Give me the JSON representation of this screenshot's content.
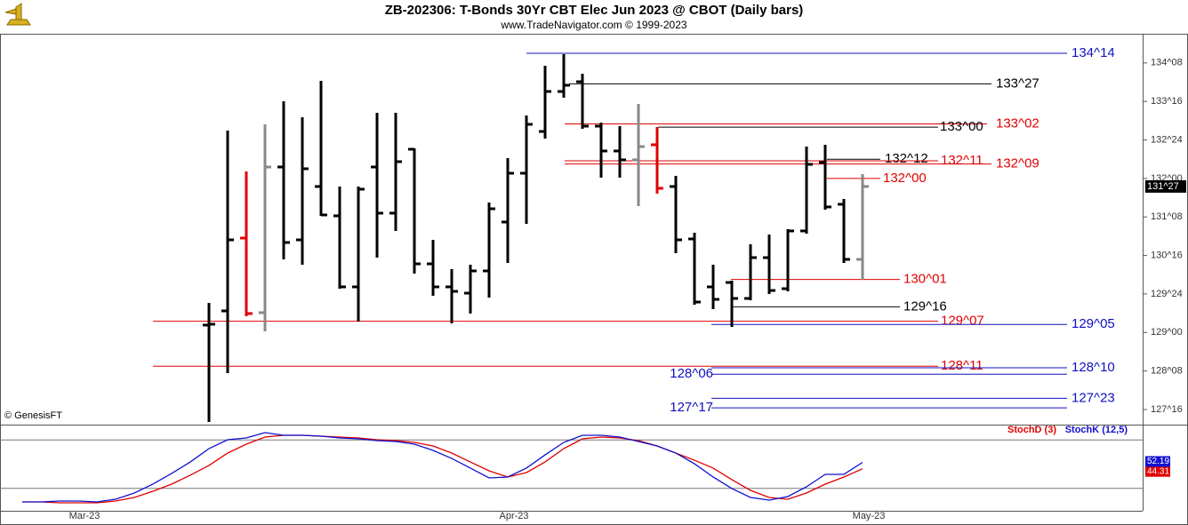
{
  "chart_data": [
    {
      "type": "ohlc",
      "title": "ZB-202306:  T-Bonds 30Yr CBT Elec Jun 2023 @ CBOT  (Daily bars)",
      "subtitle": "www.TradeNavigator.com © 1999-2023",
      "source_note": "© GenesisFT",
      "categories": [
        null,
        null,
        null,
        null,
        "Mar-23",
        null,
        null,
        null,
        null,
        null,
        null,
        null,
        null,
        null,
        null,
        null,
        null,
        null,
        null,
        null,
        null,
        null,
        null,
        null,
        null,
        null,
        null,
        "Apr-23",
        null,
        null,
        null,
        null,
        null,
        null,
        null,
        null,
        null,
        null,
        null,
        null,
        null,
        null,
        null,
        null,
        null,
        null,
        "May-23"
      ],
      "open": [
        null,
        null,
        null,
        null,
        null,
        null,
        null,
        null,
        null,
        null,
        129.144,
        129.42,
        130.839,
        129.386,
        132.223,
        130.804,
        131.843,
        131.272,
        129.888,
        132.223,
        131.324,
        132.569,
        130.337,
        129.888,
        129.766,
        130.199,
        131.151,
        132.102,
        132.915,
        133.694,
        133.884,
        133.019,
        132.535,
        132.362,
        132.656,
        131.843,
        130.822,
        129.888,
        129.974,
        129.663,
        130.458,
        129.853,
        130.978,
        132.31,
        131.497,
        130.424,
        null
      ],
      "high": [
        null,
        null,
        null,
        null,
        null,
        null,
        null,
        null,
        null,
        null,
        129.576,
        132.933,
        132.137,
        133.054,
        133.503,
        133.192,
        133.9,
        131.843,
        131.843,
        133.279,
        133.279,
        132.587,
        130.804,
        130.234,
        130.32,
        131.531,
        132.396,
        133.227,
        134.196,
        134.42,
        134.04,
        133.088,
        133.019,
        133.452,
        133.002,
        132.05,
        130.943,
        130.32,
        130.009,
        130.718,
        130.908,
        131.012,
        132.621,
        132.656,
        131.6,
        132.085,
        null
      ],
      "low": [
        null,
        null,
        null,
        null,
        null,
        null,
        null,
        null,
        null,
        null,
        127.258,
        128.209,
        129.317,
        129.022,
        130.424,
        130.32,
        131.272,
        129.853,
        129.213,
        130.458,
        130.978,
        130.147,
        129.715,
        129.178,
        129.369,
        129.68,
        130.355,
        131.116,
        132.777,
        133.573,
        132.967,
        132.016,
        132.016,
        131.462,
        131.704,
        130.545,
        129.542,
        129.455,
        129.109,
        129.628,
        129.749,
        129.801,
        130.926,
        131.393,
        130.355,
        130.026,
        null
      ],
      "close": [
        null,
        null,
        null,
        null,
        null,
        null,
        null,
        null,
        null,
        null,
        129.161,
        130.804,
        129.369,
        132.223,
        130.753,
        132.189,
        131.289,
        129.888,
        131.791,
        131.324,
        132.327,
        130.337,
        129.888,
        129.801,
        130.199,
        131.41,
        132.102,
        133.054,
        133.694,
        133.815,
        133.019,
        132.535,
        132.362,
        132.621,
        131.808,
        130.804,
        129.593,
        129.645,
        129.663,
        130.458,
        129.818,
        130.978,
        132.275,
        131.445,
        130.424,
        131.844,
        null
      ],
      "colors": [
        null,
        null,
        null,
        null,
        null,
        null,
        null,
        null,
        null,
        null,
        "#000000",
        "#000000",
        "#e00000",
        "#888888",
        "#000000",
        "#000000",
        "#000000",
        "#000000",
        "#000000",
        "#000000",
        "#000000",
        "#000000",
        "#000000",
        "#000000",
        "#000000",
        "#000000",
        "#000000",
        "#000000",
        "#000000",
        "#000000",
        "#000000",
        "#000000",
        "#000000",
        "#888888",
        "#e00000",
        "#000000",
        "#000000",
        "#000000",
        "#000000",
        "#000000",
        "#000000",
        "#000000",
        "#000000",
        "#000000",
        "#000000",
        "#888888",
        null
      ],
      "ylim": [
        127.223,
        134.818
      ],
      "yticks": [
        {
          "value": 127.5,
          "label": "127^16"
        },
        {
          "value": 128.25,
          "label": "128^08"
        },
        {
          "value": 129,
          "label": "129^00"
        },
        {
          "value": 129.75,
          "label": "129^24"
        },
        {
          "value": 130.5,
          "label": "130^16"
        },
        {
          "value": 131.25,
          "label": "131^08"
        },
        {
          "value": 132,
          "label": "132^00"
        },
        {
          "value": 132.75,
          "label": "132^24"
        },
        {
          "value": 133.5,
          "label": "133^16"
        },
        {
          "value": 134.25,
          "label": "134^08"
        }
      ],
      "last_price": {
        "value": 131.844,
        "label": "131^27"
      },
      "levels": [
        {
          "value": 134.4375,
          "label": "134^14",
          "color": "#1010c0"
        },
        {
          "value": 133.84375,
          "label": "133^27",
          "color": "#000000"
        },
        {
          "value": 133.0625,
          "label": "133^02",
          "color": "#e00000"
        },
        {
          "value": 133,
          "label": "133^00",
          "color": "#000000"
        },
        {
          "value": 132.375,
          "label": "132^12",
          "color": "#000000"
        },
        {
          "value": 132.34375,
          "label": "132^11",
          "color": "#e00000"
        },
        {
          "value": 132.28125,
          "label": "132^09",
          "color": "#e00000"
        },
        {
          "value": 132,
          "label": "132^00",
          "color": "#e00000"
        },
        {
          "value": 130.03125,
          "label": "130^01",
          "color": "#e00000"
        },
        {
          "value": 129.5,
          "label": "129^16",
          "color": "#000000"
        },
        {
          "value": 129.21875,
          "label": "129^07",
          "color": "#e00000"
        },
        {
          "value": 129.15625,
          "label": "129^05",
          "color": "#1010c0"
        },
        {
          "value": 128.34375,
          "label": "128^11",
          "color": "#e00000"
        },
        {
          "value": 128.3125,
          "label": "128^10",
          "color": "#1010c0"
        },
        {
          "value": 128.1875,
          "label": "128^06",
          "color": "#1010c0"
        },
        {
          "value": 127.71875,
          "label": "127^23",
          "color": "#1010c0"
        },
        {
          "value": 127.53125,
          "label": "127^17",
          "color": "#1010c0"
        }
      ]
    },
    {
      "type": "line",
      "series": [
        {
          "name": "StochD (3)",
          "color": "#e00000",
          "values": [
            3.3,
            3.3,
            2.2,
            2.2,
            2.2,
            4.4,
            8.8,
            16.5,
            25.3,
            36.3,
            48.4,
            63.7,
            74.7,
            83.5,
            85.7,
            85.7,
            84.6,
            83.5,
            82.4,
            80.2,
            79.1,
            76.9,
            72.5,
            63.7,
            52.7,
            41.8,
            34.1,
            39.6,
            52.7,
            69.2,
            81.3,
            83.5,
            82.4,
            79.1,
            72.5,
            63.7,
            54.9,
            45.1,
            30.8,
            17.6,
            8.8,
            6.6,
            14.3,
            25.3,
            34.1,
            44.31
          ]
        },
        {
          "name": "StochK (12,5)",
          "color": "#1010d0",
          "values": [
            3.3,
            3.3,
            4.4,
            4.4,
            3.3,
            6.6,
            14.3,
            25.3,
            38.5,
            52.7,
            69.2,
            80.2,
            82.4,
            89.0,
            85.7,
            85.7,
            84.6,
            82.4,
            81.3,
            79.1,
            78.0,
            74.7,
            67.0,
            57.1,
            45.1,
            33.0,
            34.1,
            45.1,
            61.5,
            76.9,
            85.7,
            85.7,
            83.5,
            78.0,
            72.5,
            63.7,
            50.5,
            34.1,
            19.8,
            8.8,
            5.5,
            9.9,
            22.0,
            37.4,
            37.4,
            52.19
          ]
        }
      ],
      "ylim": [
        0,
        100
      ],
      "hlines": [
        20,
        80
      ]
    }
  ]
}
